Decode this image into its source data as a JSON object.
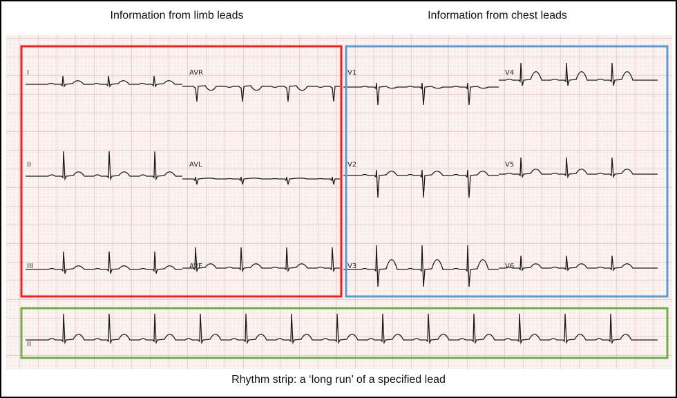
{
  "titles": {
    "limb": "Information from limb leads",
    "chest": "Information from chest leads",
    "rhythm": "Rhythm strip: a ‘long run’ of a specified lead"
  },
  "leads": {
    "I": "I",
    "aVR": "AVR",
    "V1": "V1",
    "V4": "V4",
    "II": "II",
    "aVL": "AVL",
    "V2": "V2",
    "V5": "V5",
    "III": "III",
    "aVF": "AVF",
    "V3": "V3",
    "V6": "V6",
    "rhythm": "II"
  },
  "colors": {
    "limb_box": "#ff1a1a",
    "chest_box": "#5b9bd5",
    "rhythm_box": "#70ad47",
    "grid_major": "#e0a8b4",
    "grid_minor": "#e8c9cf",
    "paper": "#faf3ef",
    "trace": "#1a1a1a"
  }
}
